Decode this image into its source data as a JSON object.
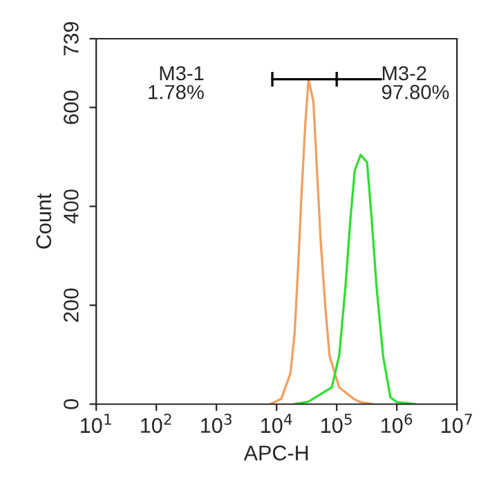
{
  "chart_data": {
    "type": "line",
    "xlabel": "APC-H",
    "ylabel": "Count",
    "log": "x",
    "grid": false,
    "xlim": [
      10,
      10000000
    ],
    "ylim": [
      0,
      739
    ],
    "xticks": [
      {
        "value": 10,
        "label": "10$^{1}$"
      },
      {
        "value": 100,
        "label": "10$^{2}$"
      },
      {
        "value": 1000,
        "label": "10$^{3}$"
      },
      {
        "value": 10000,
        "label": "10$^{4}$"
      },
      {
        "value": 100000,
        "label": "10$^{5}$"
      },
      {
        "value": 1000000,
        "label": "10$^{6}$"
      },
      {
        "value": 10000000,
        "label": "10$^{7}$"
      }
    ],
    "yticks": [
      0,
      200,
      400,
      600,
      739
    ],
    "series": [
      {
        "color": "#f0a060",
        "x": [
          7900,
          12000,
          17000,
          20000,
          23000,
          26000,
          30000,
          34000,
          41000,
          47000,
          54000,
          65000,
          76000,
          110000,
          190000,
          250000,
          400000
        ],
        "values": [
          0,
          11,
          62,
          145,
          285,
          425,
          565,
          657,
          612,
          473,
          333,
          193,
          98,
          34,
          11,
          4,
          0
        ]
      },
      {
        "color": "#33dd33",
        "x": [
          20000,
          34000,
          83000,
          110000,
          140000,
          170000,
          200000,
          250000,
          320000,
          380000,
          460000,
          590000,
          780000,
          1000000,
          2000000
        ],
        "values": [
          0,
          5,
          34,
          98,
          238,
          378,
          473,
          504,
          489,
          378,
          238,
          98,
          14,
          4,
          0
        ]
      },
      {
        "color": "#000000",
        "x": [
          8500,
          100000,
          550000
        ],
        "values": [
          657,
          657,
          657
        ],
        "errors": [
          15,
          15,
          null
        ]
      }
    ],
    "annotations": [
      "M3-1\n1.78%",
      "M3-2\n97.80%"
    ]
  }
}
